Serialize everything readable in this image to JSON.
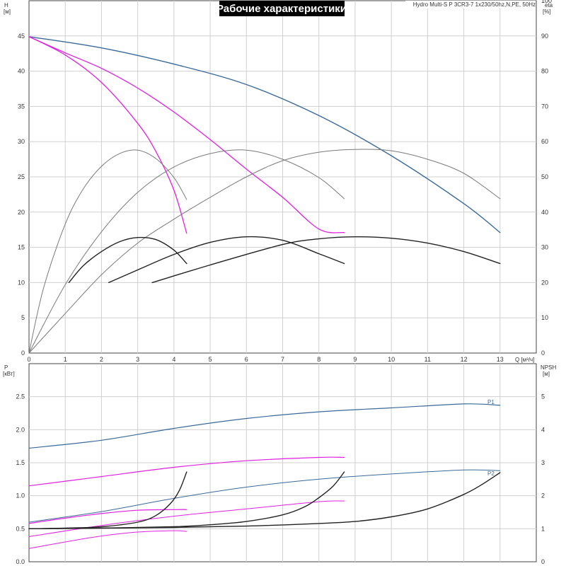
{
  "header": {
    "title": "Рабочие характеристики",
    "info": "Hydro Multi-S P 3CR3-7 1x230/50hz,N,PE, 50Hz"
  },
  "colors": {
    "blue": "#3a6a9a",
    "magenta": "#e020e0",
    "black": "#222222",
    "gray": "#7a7a7a",
    "grid": "#d0d0d0"
  },
  "chart_data": [
    {
      "type": "line",
      "panel": "top",
      "xlabel": "Q [м³/ч]",
      "ylabel": [
        "H",
        "[м]"
      ],
      "y2label": [
        "eta",
        "[%]"
      ],
      "xlim": [
        0,
        14
      ],
      "ylim": [
        0,
        50
      ],
      "y2lim": [
        0,
        100
      ],
      "xticks": [
        "0",
        "1",
        "2",
        "3",
        "4",
        "5",
        "6",
        "7",
        "8",
        "9",
        "10",
        "11",
        "12",
        "13"
      ],
      "yticks": [
        "0",
        "5",
        "10",
        "15",
        "20",
        "25",
        "30",
        "35",
        "40",
        "45"
      ],
      "y2ticks": [
        "0",
        "10",
        "20",
        "30",
        "40",
        "50",
        "60",
        "70",
        "80",
        "90",
        "100"
      ],
      "series": [
        {
          "color": "blue",
          "width": 1.4,
          "points": [
            [
              0,
              44.9
            ],
            [
              2,
              43.3
            ],
            [
              4,
              41.0
            ],
            [
              6,
              38.1
            ],
            [
              8,
              33.7
            ],
            [
              10,
              28.0
            ],
            [
              12,
              21.2
            ],
            [
              13,
              17.1
            ]
          ]
        },
        {
          "color": "magenta",
          "width": 1.3,
          "points": [
            [
              0,
              44.9
            ],
            [
              1,
              42.6
            ],
            [
              2,
              40.4
            ],
            [
              3,
              37.6
            ],
            [
              4,
              34.2
            ],
            [
              5,
              30.3
            ],
            [
              6,
              26.1
            ],
            [
              7,
              22.1
            ],
            [
              8,
              17.6
            ],
            [
              8.7,
              17.1
            ]
          ]
        },
        {
          "color": "magenta",
          "width": 1.3,
          "points": [
            [
              0,
              44.9
            ],
            [
              1,
              42.3
            ],
            [
              2,
              38.4
            ],
            [
              3,
              32.6
            ],
            [
              3.5,
              28.6
            ],
            [
              4,
              23.1
            ],
            [
              4.35,
              17.0
            ]
          ]
        },
        {
          "color": "gray",
          "width": 1.0,
          "points": [
            [
              0,
              0
            ],
            [
              0.4,
              9.2
            ],
            [
              1,
              18.3
            ],
            [
              1.5,
              23.3
            ],
            [
              2,
              26.5
            ],
            [
              2.5,
              28.3
            ],
            [
              3,
              28.8
            ],
            [
              3.5,
              27.6
            ],
            [
              4,
              24.9
            ],
            [
              4.35,
              21.8
            ]
          ]
        },
        {
          "color": "gray",
          "width": 1.0,
          "points": [
            [
              0,
              0
            ],
            [
              1,
              9.7
            ],
            [
              2,
              17.2
            ],
            [
              3,
              22.8
            ],
            [
              4,
              26.4
            ],
            [
              5,
              28.3
            ],
            [
              6,
              28.8
            ],
            [
              7,
              27.5
            ],
            [
              8,
              24.9
            ],
            [
              8.7,
              21.9
            ]
          ]
        },
        {
          "color": "gray",
          "width": 1.0,
          "points": [
            [
              0,
              0
            ],
            [
              1,
              5.6
            ],
            [
              2,
              11.1
            ],
            [
              3,
              15.6
            ],
            [
              4,
              19.0
            ],
            [
              5,
              22.1
            ],
            [
              6,
              25.0
            ],
            [
              7,
              27.3
            ],
            [
              8,
              28.5
            ],
            [
              9,
              28.9
            ],
            [
              10,
              28.7
            ],
            [
              11,
              27.5
            ],
            [
              12,
              25.5
            ],
            [
              13,
              21.9
            ]
          ]
        },
        {
          "color": "black",
          "width": 1.4,
          "points": [
            [
              1.1,
              10.0
            ],
            [
              1.5,
              12.4
            ],
            [
              2,
              14.4
            ],
            [
              2.5,
              15.8
            ],
            [
              3,
              16.4
            ],
            [
              3.5,
              16.1
            ],
            [
              4,
              14.6
            ],
            [
              4.35,
              12.7
            ]
          ]
        },
        {
          "color": "black",
          "width": 1.4,
          "points": [
            [
              2.2,
              10.0
            ],
            [
              3,
              11.8
            ],
            [
              4,
              14.0
            ],
            [
              5,
              15.7
            ],
            [
              6,
              16.5
            ],
            [
              7,
              16.0
            ],
            [
              8,
              14.1
            ],
            [
              8.7,
              12.7
            ]
          ]
        },
        {
          "color": "black",
          "width": 1.4,
          "points": [
            [
              3.4,
              10.0
            ],
            [
              5,
              12.5
            ],
            [
              7,
              15.4
            ],
            [
              8,
              16.2
            ],
            [
              9,
              16.5
            ],
            [
              10,
              16.3
            ],
            [
              11,
              15.6
            ],
            [
              12,
              14.4
            ],
            [
              13,
              12.7
            ]
          ]
        }
      ]
    },
    {
      "type": "line",
      "panel": "bottom",
      "xlabel": "",
      "ylabel": [
        "P",
        "[кВт]"
      ],
      "y2label": [
        "NPSH",
        "[м]"
      ],
      "xlim": [
        0,
        14
      ],
      "ylim": [
        0,
        3
      ],
      "y2lim": [
        0,
        6
      ],
      "yticks": [
        "0.0",
        "0.5",
        "1.0",
        "1.5",
        "2.0",
        "2.5"
      ],
      "y2ticks": [
        "0",
        "1",
        "2",
        "3",
        "4",
        "5"
      ],
      "labels": [
        "P1",
        "P2"
      ],
      "series": [
        {
          "color": "blue",
          "width": 1.2,
          "label": "P1",
          "points": [
            [
              0,
              1.72
            ],
            [
              2,
              1.84
            ],
            [
              4,
              2.02
            ],
            [
              6,
              2.17
            ],
            [
              8,
              2.27
            ],
            [
              10,
              2.33
            ],
            [
              12,
              2.39
            ],
            [
              13,
              2.37
            ]
          ]
        },
        {
          "color": "blue",
          "width": 1.0,
          "label": "P2",
          "points": [
            [
              0,
              0.6
            ],
            [
              2,
              0.76
            ],
            [
              4,
              0.96
            ],
            [
              6,
              1.13
            ],
            [
              8,
              1.25
            ],
            [
              10,
              1.33
            ],
            [
              12,
              1.39
            ],
            [
              13,
              1.38
            ]
          ]
        },
        {
          "color": "magenta",
          "width": 1.2,
          "points": [
            [
              0,
              1.15
            ],
            [
              2,
              1.29
            ],
            [
              4,
              1.43
            ],
            [
              6,
              1.53
            ],
            [
              8,
              1.58
            ],
            [
              8.7,
              1.58
            ]
          ]
        },
        {
          "color": "magenta",
          "width": 1.0,
          "points": [
            [
              0,
              0.38
            ],
            [
              2,
              0.55
            ],
            [
              4,
              0.69
            ],
            [
              6,
              0.8
            ],
            [
              8,
              0.91
            ],
            [
              8.7,
              0.92
            ]
          ]
        },
        {
          "color": "magenta",
          "width": 1.2,
          "points": [
            [
              0,
              0.58
            ],
            [
              1,
              0.66
            ],
            [
              2,
              0.73
            ],
            [
              3,
              0.78
            ],
            [
              4,
              0.79
            ],
            [
              4.35,
              0.79
            ]
          ]
        },
        {
          "color": "magenta",
          "width": 1.0,
          "points": [
            [
              0,
              0.2
            ],
            [
              1,
              0.3
            ],
            [
              2,
              0.39
            ],
            [
              3,
              0.45
            ],
            [
              4,
              0.47
            ],
            [
              4.35,
              0.46
            ]
          ]
        },
        {
          "color": "black",
          "width": 1.4,
          "points": [
            [
              0,
              0.5
            ],
            [
              1,
              0.51
            ],
            [
              2,
              0.53
            ],
            [
              3,
              0.6
            ],
            [
              3.5,
              0.7
            ],
            [
              3.9,
              0.88
            ],
            [
              4.15,
              1.08
            ],
            [
              4.35,
              1.36
            ]
          ]
        },
        {
          "color": "black",
          "width": 1.4,
          "points": [
            [
              0,
              0.5
            ],
            [
              2,
              0.51
            ],
            [
              4,
              0.53
            ],
            [
              5,
              0.56
            ],
            [
              6,
              0.61
            ],
            [
              7,
              0.71
            ],
            [
              7.6,
              0.83
            ],
            [
              8,
              0.97
            ],
            [
              8.4,
              1.15
            ],
            [
              8.7,
              1.36
            ]
          ]
        },
        {
          "color": "black",
          "width": 1.4,
          "points": [
            [
              0,
              0.5
            ],
            [
              2,
              0.51
            ],
            [
              4,
              0.52
            ],
            [
              6,
              0.54
            ],
            [
              8,
              0.58
            ],
            [
              9,
              0.61
            ],
            [
              10,
              0.68
            ],
            [
              11,
              0.8
            ],
            [
              12,
              1.02
            ],
            [
              12.5,
              1.17
            ],
            [
              13,
              1.35
            ]
          ]
        }
      ]
    }
  ]
}
